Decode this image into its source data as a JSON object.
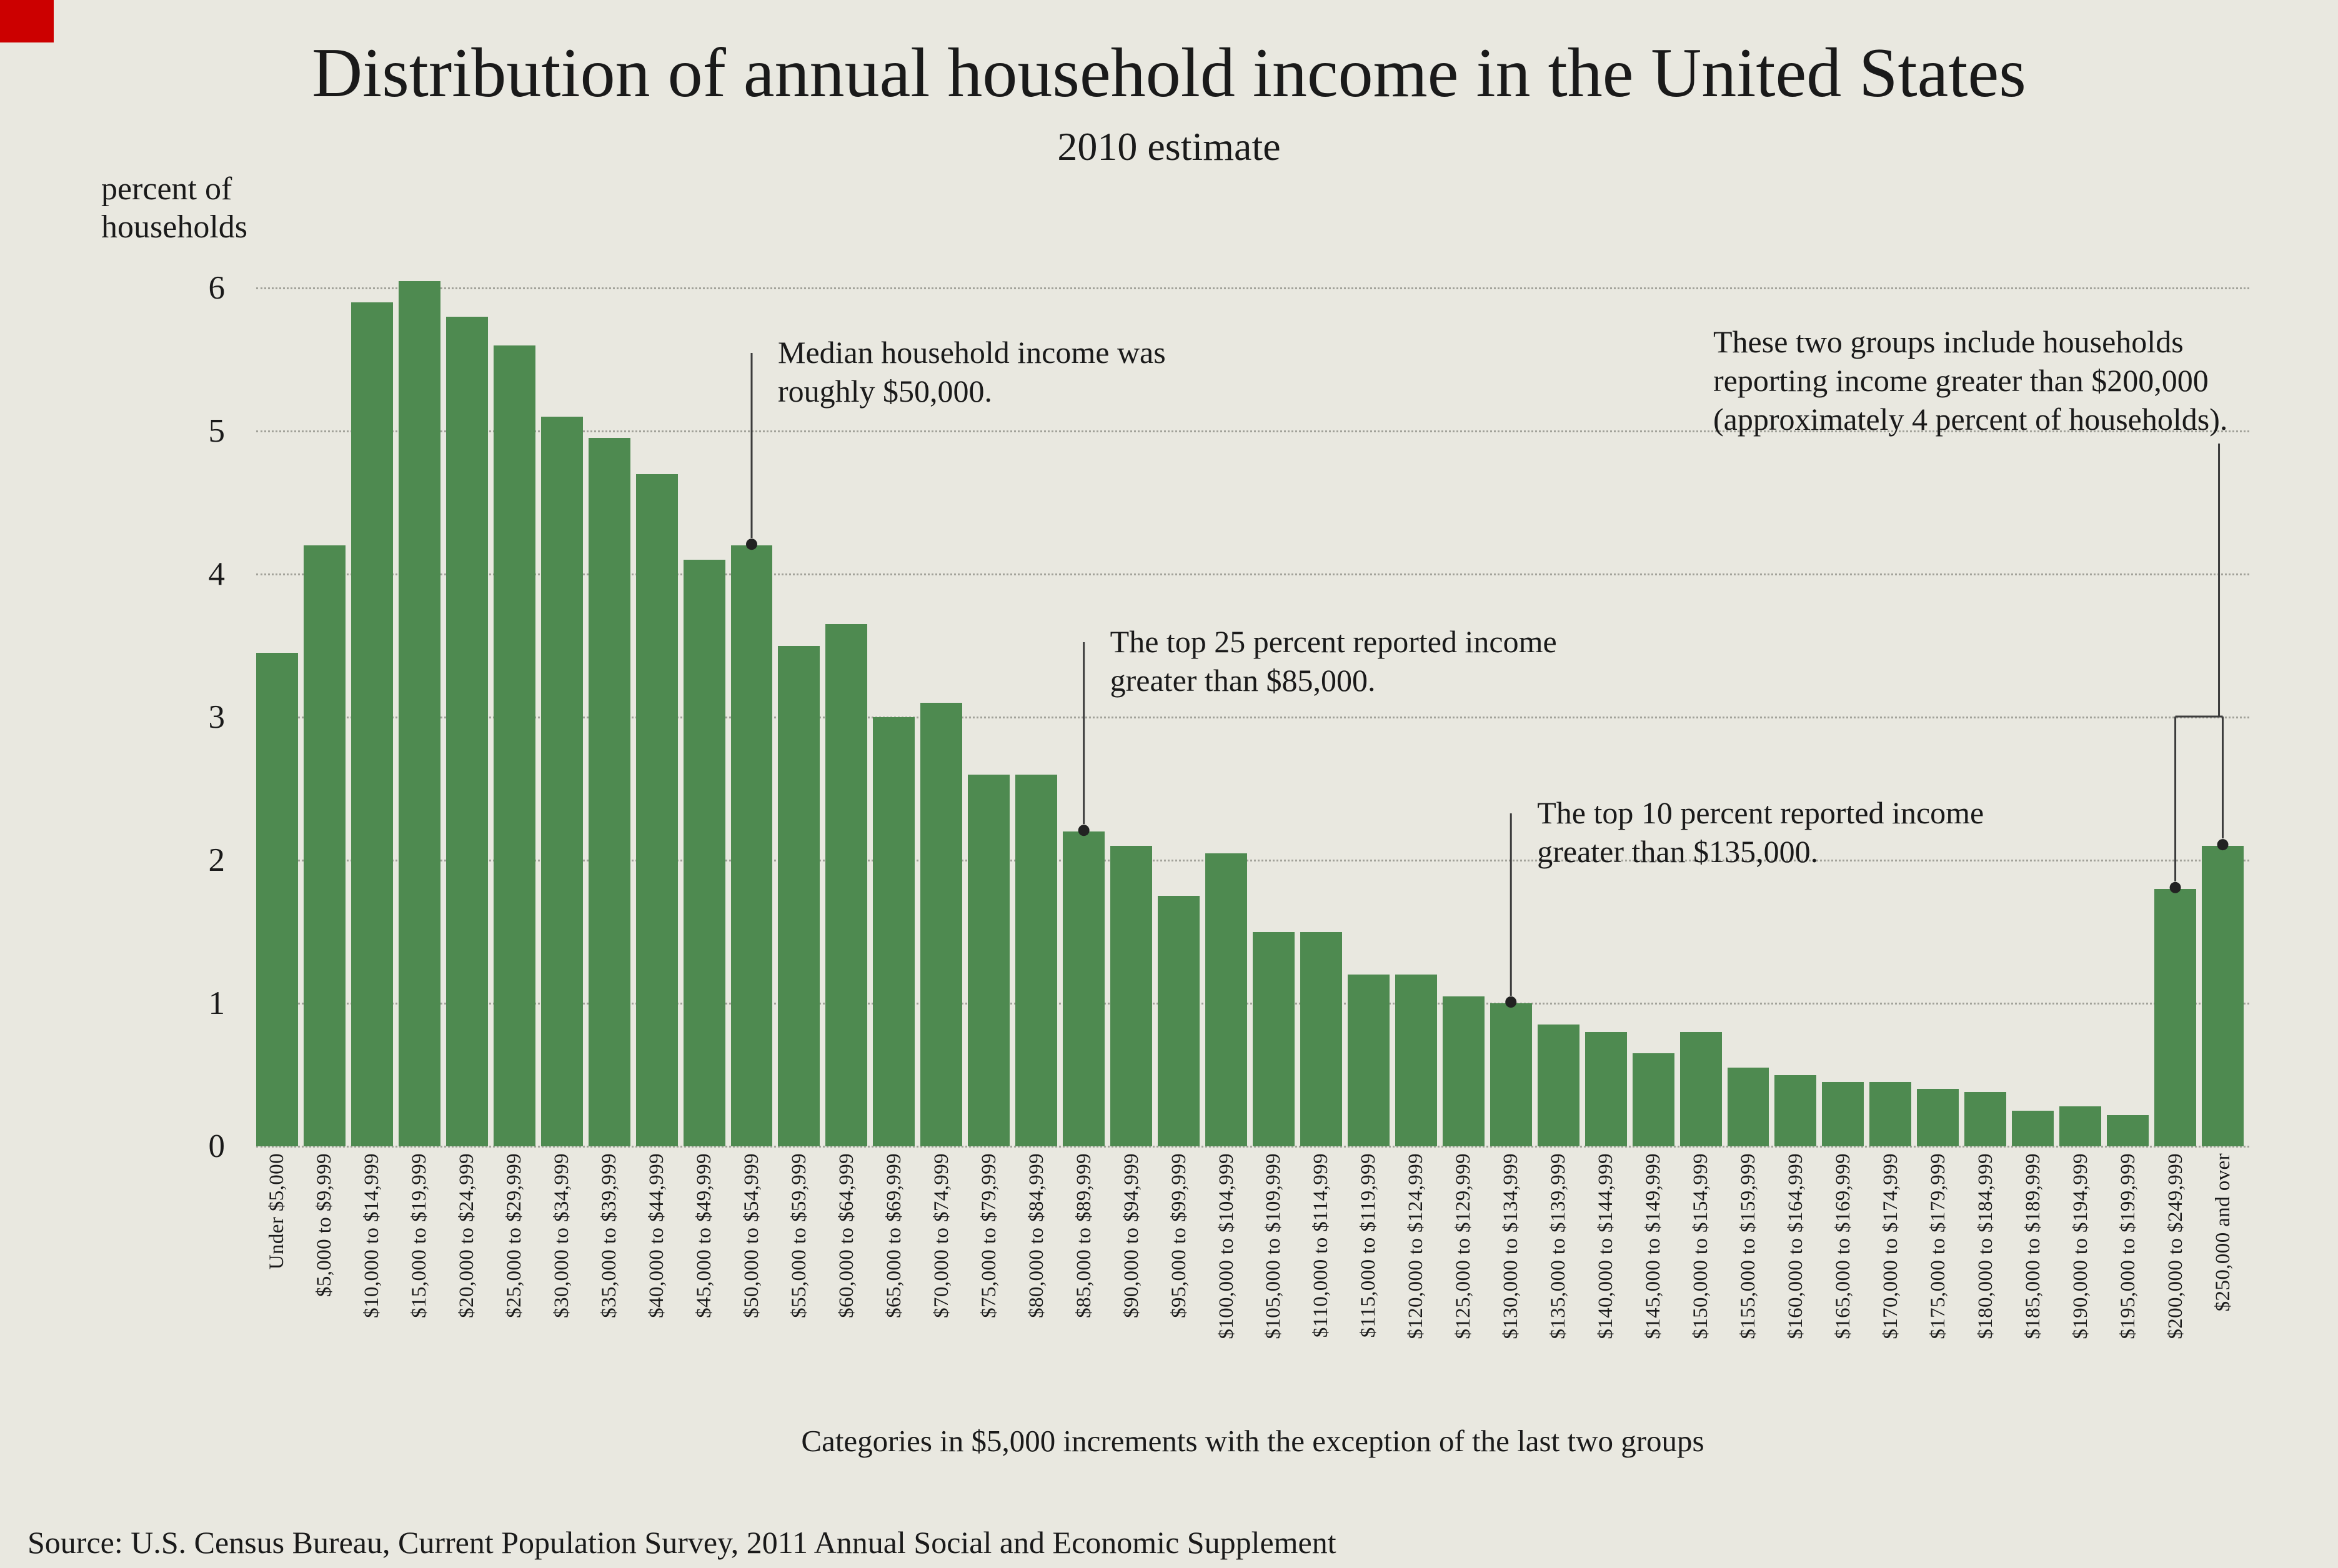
{
  "page": {
    "background": "#e9e8e0",
    "corner_mark_color": "#cc0000"
  },
  "header": {
    "title": "Distribution of annual household income in the United States",
    "subtitle": "2010 estimate"
  },
  "chart_data": {
    "type": "bar",
    "title": "Distribution of annual household income in the United States",
    "subtitle": "2010 estimate",
    "ylabel": "percent of households",
    "xlabel": "Categories in $5,000 increments with the exception of the last two groups",
    "ylim": [
      0,
      6
    ],
    "yticks": [
      6,
      5,
      4,
      3,
      2,
      1,
      0
    ],
    "grid": "horizontal-dotted",
    "legend": "none",
    "bar_color": "#4e8a50",
    "categories": [
      "Under $5,000",
      "$5,000 to $9,999",
      "$10,000 to $14,999",
      "$15,000 to $19,999",
      "$20,000 to $24,999",
      "$25,000 to $29,999",
      "$30,000 to $34,999",
      "$35,000 to $39,999",
      "$40,000 to $44,999",
      "$45,000 to $49,999",
      "$50,000 to $54,999",
      "$55,000 to $59,999",
      "$60,000 to $64,999",
      "$65,000 to $69,999",
      "$70,000 to $74,999",
      "$75,000 to $79,999",
      "$80,000 to $84,999",
      "$85,000 to $89,999",
      "$90,000 to $94,999",
      "$95,000 to $99,999",
      "$100,000 to $104,999",
      "$105,000 to $109,999",
      "$110,000 to $114,999",
      "$115,000 to $119,999",
      "$120,000 to $124,999",
      "$125,000 to $129,999",
      "$130,000 to $134,999",
      "$135,000 to $139,999",
      "$140,000 to $144,999",
      "$145,000 to $149,999",
      "$150,000 to $154,999",
      "$155,000 to $159,999",
      "$160,000 to $164,999",
      "$165,000 to $169,999",
      "$170,000 to $174,999",
      "$175,000 to $179,999",
      "$180,000 to $184,999",
      "$185,000 to $189,999",
      "$190,000 to $194,999",
      "$195,000 to $199,999",
      "$200,000 to $249,999",
      "$250,000 and over"
    ],
    "values": [
      3.45,
      4.2,
      5.9,
      6.05,
      5.8,
      5.6,
      5.1,
      4.95,
      4.7,
      4.1,
      4.2,
      3.5,
      3.65,
      3.0,
      3.1,
      2.6,
      2.6,
      2.2,
      2.1,
      1.75,
      2.05,
      1.5,
      1.5,
      1.2,
      1.2,
      1.05,
      1.0,
      0.85,
      0.8,
      0.65,
      0.8,
      0.55,
      0.5,
      0.45,
      0.45,
      0.4,
      0.38,
      0.25,
      0.28,
      0.22,
      1.8,
      2.1
    ],
    "annotations": [
      {
        "id": "median",
        "text": "Median household income was roughly $50,000.",
        "lines": [
          "Median household income was",
          "roughly $50,000."
        ],
        "target_index": 10
      },
      {
        "id": "top25",
        "text": "The top 25 percent reported income greater than $85,000.",
        "lines": [
          "The top 25 percent reported income",
          "greater than $85,000."
        ],
        "target_index": 17
      },
      {
        "id": "top10",
        "text": "The top 10 percent reported income greater than $135,000.",
        "lines": [
          "The top 10 percent reported income",
          "greater than $135,000."
        ],
        "target_index": 26
      },
      {
        "id": "top-two-groups",
        "text": "These two groups include households reporting income greater than $200,000 (approximately 4 percent of households).",
        "lines": [
          "These two groups include households",
          "reporting income greater than $200,000",
          "(approximately 4 percent of households)."
        ],
        "target_indices": [
          40,
          41
        ]
      }
    ]
  },
  "footer": {
    "axis_note": "Categories in $5,000 increments with the exception of the last two groups",
    "source": "Source: U.S. Census Bureau, Current Population Survey, 2011 Annual Social and Economic Supplement"
  }
}
